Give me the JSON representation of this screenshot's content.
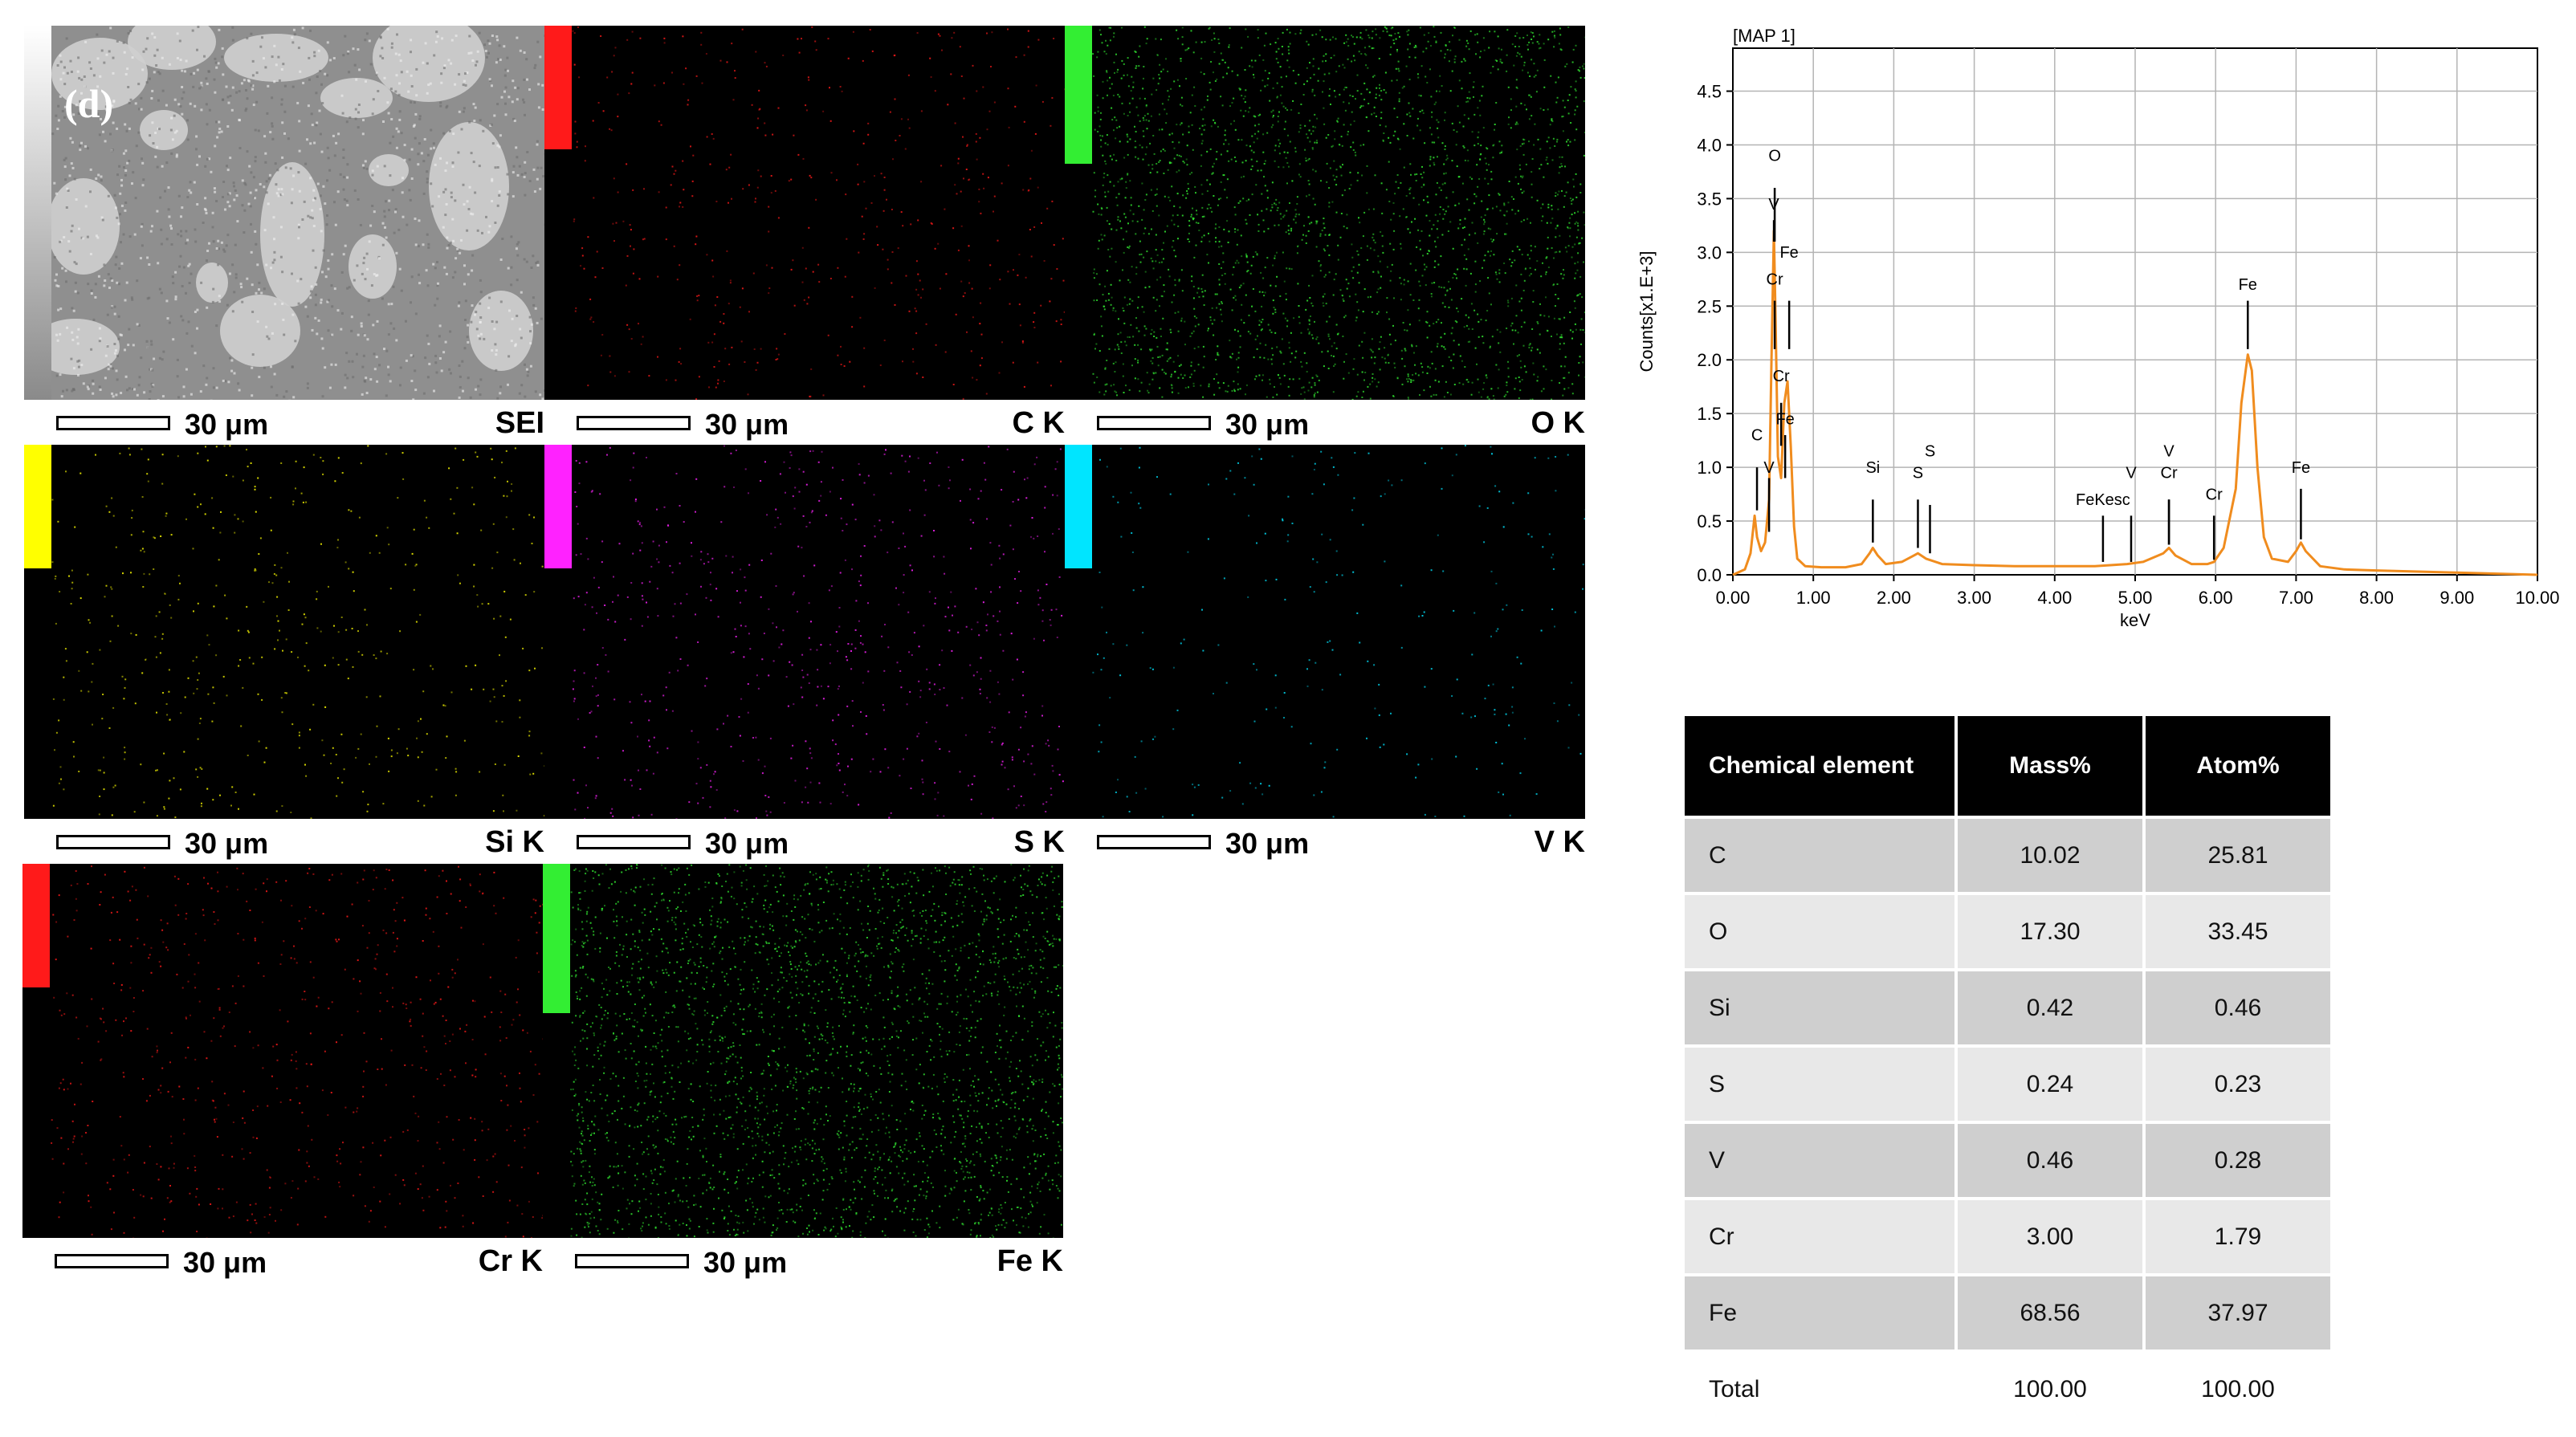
{
  "panel_letter": "(d)",
  "maps": [
    {
      "label": "SEI",
      "scale": "30 μm",
      "color": "",
      "bar": 0
    },
    {
      "label": "C K",
      "scale": "30 μm",
      "color": "#ff1a1a",
      "bar": 0.33
    },
    {
      "label": "O K",
      "scale": "30 μm",
      "color": "#33ee33",
      "bar": 0.37
    },
    {
      "label": "Si K",
      "scale": "30 μm",
      "color": "#ffff00",
      "bar": 0.33
    },
    {
      "label": "S K",
      "scale": "30 μm",
      "color": "#ff22ff",
      "bar": 0.33
    },
    {
      "label": "V K",
      "scale": "30 μm",
      "color": "#00e5ff",
      "bar": 0.33
    },
    {
      "label": "Cr K",
      "scale": "30 μm",
      "color": "#ff1a1a",
      "bar": 0.33
    },
    {
      "label": "Fe K",
      "scale": "30 μm",
      "color": "#33ee33",
      "bar": 0.4
    }
  ],
  "chart_data": {
    "type": "line",
    "title": "[MAP 1]",
    "xlabel": "keV",
    "ylabel": "Counts[x1.E+3]",
    "xlim": [
      0,
      10
    ],
    "ylim": [
      0,
      4.9
    ],
    "x_ticks": [
      "0.00",
      "1.00",
      "2.00",
      "3.00",
      "4.00",
      "5.00",
      "6.00",
      "7.00",
      "8.00",
      "9.00",
      "10.00"
    ],
    "y_ticks": [
      "0.0",
      "0.5",
      "1.0",
      "1.5",
      "2.0",
      "2.5",
      "3.0",
      "3.5",
      "4.0",
      "4.5"
    ],
    "line_color": "#f08c1e",
    "x": [
      0.0,
      0.15,
      0.22,
      0.27,
      0.3,
      0.35,
      0.4,
      0.45,
      0.48,
      0.51,
      0.53,
      0.56,
      0.6,
      0.64,
      0.68,
      0.72,
      0.76,
      0.8,
      0.9,
      1.1,
      1.4,
      1.6,
      1.7,
      1.74,
      1.8,
      1.9,
      2.1,
      2.25,
      2.3,
      2.4,
      2.6,
      3.0,
      3.5,
      4.0,
      4.5,
      4.9,
      5.1,
      5.35,
      5.42,
      5.5,
      5.7,
      5.9,
      5.98,
      6.1,
      6.25,
      6.32,
      6.4,
      6.45,
      6.52,
      6.6,
      6.7,
      6.9,
      7.0,
      7.06,
      7.12,
      7.3,
      7.6,
      8.0,
      9.0,
      10.0
    ],
    "y": [
      0.0,
      0.05,
      0.2,
      0.55,
      0.35,
      0.22,
      0.3,
      0.7,
      2.0,
      3.2,
      2.4,
      1.1,
      0.9,
      1.6,
      1.8,
      1.2,
      0.45,
      0.15,
      0.08,
      0.07,
      0.07,
      0.1,
      0.2,
      0.25,
      0.18,
      0.1,
      0.12,
      0.18,
      0.2,
      0.15,
      0.1,
      0.09,
      0.08,
      0.08,
      0.08,
      0.1,
      0.12,
      0.2,
      0.25,
      0.18,
      0.1,
      0.1,
      0.12,
      0.25,
      0.8,
      1.6,
      2.05,
      1.9,
      1.0,
      0.35,
      0.15,
      0.12,
      0.22,
      0.3,
      0.22,
      0.08,
      0.05,
      0.04,
      0.02,
      0.0
    ],
    "annotations": [
      {
        "label": "O",
        "x": 0.52,
        "y_text": 3.85,
        "y_line": 3.6,
        "y_line_end": 3.1
      },
      {
        "label": "V",
        "x": 0.51,
        "y_text": 3.4,
        "y_line": 3.3,
        "y_line_end": 3.1
      },
      {
        "label": "Fe",
        "x": 0.7,
        "y_text": 2.95,
        "y_line": 2.55,
        "y_line_end": 2.1
      },
      {
        "label": "Cr",
        "x": 0.52,
        "y_text": 2.7,
        "y_line": 2.55,
        "y_line_end": 2.1
      },
      {
        "label": "Cr",
        "x": 0.6,
        "y_text": 1.8,
        "y_line": 1.6,
        "y_line_end": 1.2
      },
      {
        "label": "Fe",
        "x": 0.65,
        "y_text": 1.4,
        "y_line": 1.3,
        "y_line_end": 0.9
      },
      {
        "label": "C",
        "x": 0.3,
        "y_text": 1.25,
        "y_line": 1.0,
        "y_line_end": 0.6
      },
      {
        "label": "V",
        "x": 0.45,
        "y_text": 0.95,
        "y_line": 0.9,
        "y_line_end": 0.4
      },
      {
        "label": "Si",
        "x": 1.74,
        "y_text": 0.95,
        "y_line": 0.7,
        "y_line_end": 0.3
      },
      {
        "label": "S",
        "x": 2.3,
        "y_text": 0.9,
        "y_line": 0.7,
        "y_line_end": 0.25
      },
      {
        "label": "S",
        "x": 2.45,
        "y_text": 1.1,
        "y_line": 0.65,
        "y_line_end": 0.2
      },
      {
        "label": "FeKesc",
        "x": 4.6,
        "y_text": 0.65,
        "y_line": 0.55,
        "y_line_end": 0.12
      },
      {
        "label": "V",
        "x": 4.95,
        "y_text": 0.9,
        "y_line": 0.55,
        "y_line_end": 0.12
      },
      {
        "label": "V",
        "x": 5.42,
        "y_text": 1.1,
        "y_line": 0.7,
        "y_line_end": 0.28
      },
      {
        "label": "Cr",
        "x": 5.42,
        "y_text": 0.9,
        "y_line": 0.7,
        "y_line_end": 0.28
      },
      {
        "label": "Cr",
        "x": 5.98,
        "y_text": 0.7,
        "y_line": 0.55,
        "y_line_end": 0.14
      },
      {
        "label": "Fe",
        "x": 6.4,
        "y_text": 2.65,
        "y_line": 2.55,
        "y_line_end": 2.1
      },
      {
        "label": "Fe",
        "x": 7.06,
        "y_text": 0.95,
        "y_line": 0.8,
        "y_line_end": 0.33
      }
    ]
  },
  "table": {
    "headers": [
      "Chemical element",
      "Mass%",
      "Atom%"
    ],
    "rows": [
      {
        "element": "C",
        "mass": "10.02",
        "atom": "25.81"
      },
      {
        "element": "O",
        "mass": "17.30",
        "atom": "33.45"
      },
      {
        "element": "Si",
        "mass": "0.42",
        "atom": "0.46"
      },
      {
        "element": "S",
        "mass": "0.24",
        "atom": "0.23"
      },
      {
        "element": "V",
        "mass": "0.46",
        "atom": "0.28"
      },
      {
        "element": "Cr",
        "mass": "3.00",
        "atom": "1.79"
      },
      {
        "element": "Fe",
        "mass": "68.56",
        "atom": "37.97"
      },
      {
        "element": "Total",
        "mass": "100.00",
        "atom": "100.00"
      }
    ]
  }
}
